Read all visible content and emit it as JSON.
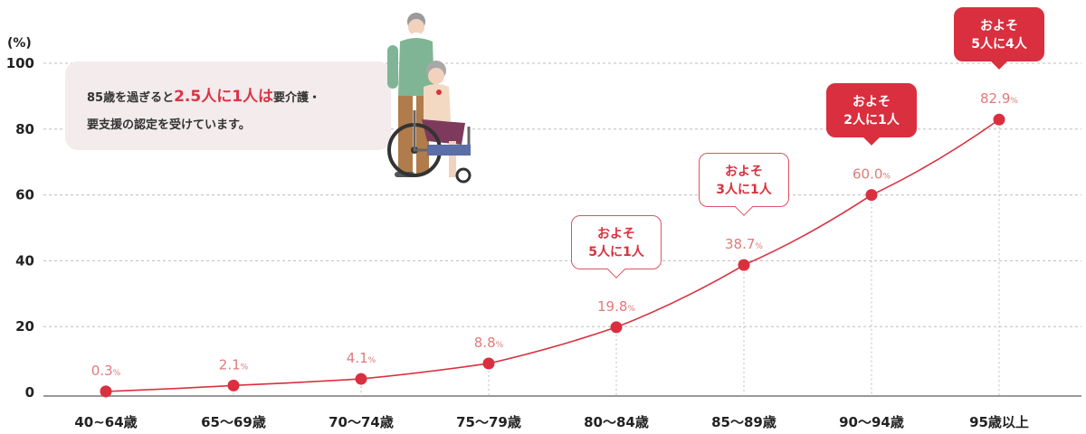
{
  "chart_data": {
    "type": "line",
    "categories": [
      "40~64歳",
      "65〜69歳",
      "70〜74歳",
      "75〜79歳",
      "80〜84歳",
      "85〜89歳",
      "90〜94歳",
      "95歳以上"
    ],
    "values": [
      0.3,
      2.1,
      4.1,
      8.8,
      19.8,
      38.7,
      60.0,
      82.9
    ],
    "value_labels": [
      "0.3",
      "2.1",
      "4.1",
      "8.8",
      "19.8",
      "38.7",
      "60.0",
      "82.9"
    ],
    "value_suffix": "%",
    "ylabel": "(%)",
    "ylim": [
      0,
      100
    ],
    "yticks": [
      0,
      20,
      40,
      60,
      80,
      100
    ],
    "grid": true,
    "colors": {
      "line": "#d9313f",
      "marker": "#d92f3f",
      "value_label": "#e07a7a"
    }
  },
  "callout": {
    "pre": "85歳を過ぎると",
    "highlight": "2.5人に1人は",
    "post_line1": "要介護・",
    "line2": "要支援の認定を受けています。"
  },
  "bubbles": [
    {
      "category_index": 4,
      "line1": "およそ",
      "line2": "5人に1人",
      "style": "outline"
    },
    {
      "category_index": 5,
      "line1": "およそ",
      "line2": "3人に1人",
      "style": "outline"
    },
    {
      "category_index": 6,
      "line1": "およそ",
      "line2": "2人に1人",
      "style": "filled"
    },
    {
      "category_index": 7,
      "line1": "およそ",
      "line2": "5人に4人",
      "style": "filled"
    }
  ]
}
